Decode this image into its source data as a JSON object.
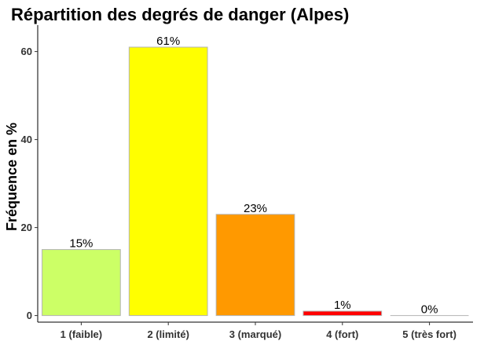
{
  "chart_data": {
    "type": "bar",
    "title": "Répartition des degrés de danger (Alpes)",
    "xlabel": "",
    "ylabel": "Fréquence en %",
    "categories": [
      "1 (faible)",
      "2 (limité)",
      "3 (marqué)",
      "4 (fort)",
      "5 (très fort)"
    ],
    "values": [
      15,
      61,
      23,
      1,
      0
    ],
    "data_labels": [
      "15%",
      "61%",
      "23%",
      "1%",
      "0%"
    ],
    "colors": [
      "#ccff66",
      "#ffff00",
      "#ff9900",
      "#ff0000",
      "#b30000"
    ],
    "yticks": [
      0,
      20,
      40,
      60
    ],
    "ylim": [
      -1.5,
      66
    ],
    "grid": false,
    "legend": "none"
  }
}
